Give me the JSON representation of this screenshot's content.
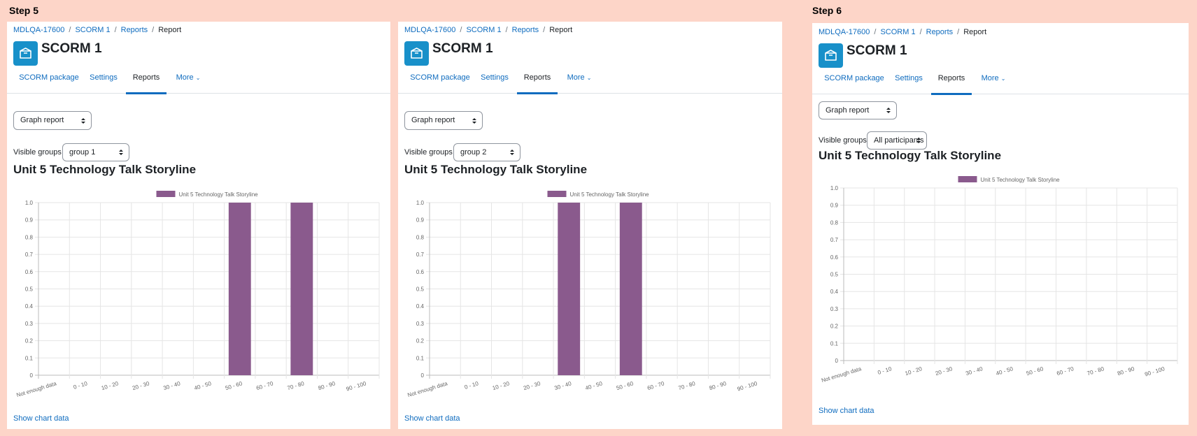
{
  "steps": [
    "Step 5",
    "Step 6"
  ],
  "panels": [
    {
      "breadcrumb": [
        "MDLQA-17600",
        "SCORM 1",
        "Reports",
        "Report"
      ],
      "title": "SCORM 1",
      "tabs": [
        {
          "label": "SCORM package",
          "active": false
        },
        {
          "label": "Settings",
          "active": false
        },
        {
          "label": "Reports",
          "active": true
        },
        {
          "label": "More",
          "active": false
        }
      ],
      "report_select": "Graph report",
      "visible_groups_label": "Visible groups",
      "group_select": "group 1",
      "chart_heading": "Unit 5 Technology Talk Storyline",
      "show_chart_data": "Show chart data"
    },
    {
      "breadcrumb": [
        "MDLQA-17600",
        "SCORM 1",
        "Reports",
        "Report"
      ],
      "title": "SCORM 1",
      "tabs": [
        {
          "label": "SCORM package",
          "active": false
        },
        {
          "label": "Settings",
          "active": false
        },
        {
          "label": "Reports",
          "active": true
        },
        {
          "label": "More",
          "active": false
        }
      ],
      "report_select": "Graph report",
      "visible_groups_label": "Visible groups",
      "group_select": "group 2",
      "chart_heading": "Unit 5 Technology Talk Storyline",
      "show_chart_data": "Show chart data"
    },
    {
      "breadcrumb": [
        "MDLQA-17600",
        "SCORM 1",
        "Reports",
        "Report"
      ],
      "title": "SCORM 1",
      "tabs": [
        {
          "label": "SCORM package",
          "active": false
        },
        {
          "label": "Settings",
          "active": false
        },
        {
          "label": "Reports",
          "active": true
        },
        {
          "label": "More",
          "active": false
        }
      ],
      "report_select": "Graph report",
      "visible_groups_label": "Visible groups",
      "group_select": "All participants",
      "chart_heading": "Unit 5 Technology Talk Storyline",
      "show_chart_data": "Show chart data"
    }
  ],
  "colors": {
    "accent": "#0f6cbf",
    "bar": "#8a5a8d",
    "icon_bg": "#1890c9",
    "background": "#fdd5c8"
  },
  "chart_data": [
    {
      "type": "bar",
      "categories": [
        "Not enough data",
        "0 - 10",
        "10 - 20",
        "20 - 30",
        "30 - 40",
        "40 - 50",
        "50 - 60",
        "60 - 70",
        "70 - 80",
        "80 - 90",
        "90 - 100"
      ],
      "series": [
        {
          "name": "Unit 5 Technology Talk Storyline",
          "values": [
            0,
            0,
            0,
            0,
            0,
            0,
            1,
            0,
            1,
            0,
            0
          ]
        }
      ],
      "yticks": [
        "0",
        "0.1",
        "0.2",
        "0.3",
        "0.4",
        "0.5",
        "0.6",
        "0.7",
        "0.8",
        "0.9",
        "1.0"
      ],
      "ylim": [
        0,
        1
      ],
      "legend": "top",
      "grid": true
    },
    {
      "type": "bar",
      "categories": [
        "Not enough data",
        "0 - 10",
        "10 - 20",
        "20 - 30",
        "30 - 40",
        "40 - 50",
        "50 - 60",
        "60 - 70",
        "70 - 80",
        "80 - 90",
        "90 - 100"
      ],
      "series": [
        {
          "name": "Unit 5 Technology Talk Storyline",
          "values": [
            0,
            0,
            0,
            0,
            1,
            0,
            1,
            0,
            0,
            0,
            0
          ]
        }
      ],
      "yticks": [
        "0",
        "0.1",
        "0.2",
        "0.3",
        "0.4",
        "0.5",
        "0.6",
        "0.7",
        "0.8",
        "0.9",
        "1.0"
      ],
      "ylim": [
        0,
        1
      ],
      "legend": "top",
      "grid": true
    },
    {
      "type": "bar",
      "categories": [
        "Not enough data",
        "0 - 10",
        "10 - 20",
        "20 - 30",
        "30 - 40",
        "40 - 50",
        "50 - 60",
        "60 - 70",
        "70 - 80",
        "80 - 90",
        "90 - 100"
      ],
      "series": [
        {
          "name": "Unit 5 Technology Talk Storyline",
          "values": [
            0,
            0,
            0,
            0,
            0,
            0,
            0,
            0,
            0,
            0,
            0
          ]
        }
      ],
      "yticks": [
        "0",
        "0.1",
        "0.2",
        "0.3",
        "0.4",
        "0.5",
        "0.6",
        "0.7",
        "0.8",
        "0.9",
        "1.0"
      ],
      "ylim": [
        0,
        1
      ],
      "legend": "top",
      "grid": true
    }
  ]
}
